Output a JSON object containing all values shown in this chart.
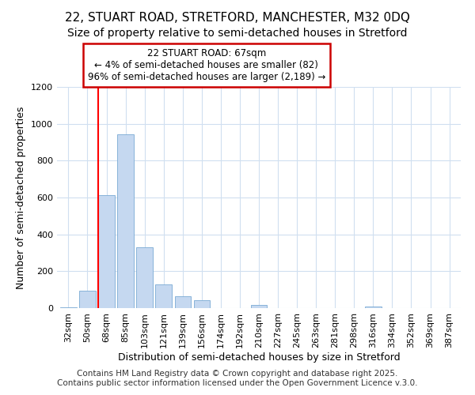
{
  "title_line1": "22, STUART ROAD, STRETFORD, MANCHESTER, M32 0DQ",
  "title_line2": "Size of property relative to semi-detached houses in Stretford",
  "xlabel": "Distribution of semi-detached houses by size in Stretford",
  "ylabel": "Number of semi-detached properties",
  "annotation_title": "22 STUART ROAD: 67sqm",
  "annotation_line1": "← 4% of semi-detached houses are smaller (82)",
  "annotation_line2": "96% of semi-detached houses are larger (2,189) →",
  "footer_line1": "Contains HM Land Registry data © Crown copyright and database right 2025.",
  "footer_line2": "Contains public sector information licensed under the Open Government Licence v.3.0.",
  "categories": [
    "32sqm",
    "50sqm",
    "68sqm",
    "85sqm",
    "103sqm",
    "121sqm",
    "139sqm",
    "156sqm",
    "174sqm",
    "192sqm",
    "210sqm",
    "227sqm",
    "245sqm",
    "263sqm",
    "281sqm",
    "298sqm",
    "316sqm",
    "334sqm",
    "352sqm",
    "369sqm",
    "387sqm"
  ],
  "values": [
    5,
    95,
    615,
    945,
    330,
    130,
    65,
    42,
    0,
    0,
    18,
    0,
    0,
    0,
    0,
    0,
    10,
    0,
    0,
    0,
    0
  ],
  "bar_color": "#c5d8f0",
  "bar_edge_color": "#7aaad4",
  "red_line_bar_index": 2,
  "annotation_box_color": "#ffffff",
  "annotation_box_edge": "#cc0000",
  "ylim": [
    0,
    1200
  ],
  "yticks": [
    0,
    200,
    400,
    600,
    800,
    1000,
    1200
  ],
  "background_color": "#ffffff",
  "plot_bg_color": "#ffffff",
  "grid_color": "#d0dff0",
  "title_fontsize": 11,
  "subtitle_fontsize": 10,
  "axis_label_fontsize": 9,
  "tick_fontsize": 8,
  "annotation_fontsize": 8.5,
  "footer_fontsize": 7.5
}
